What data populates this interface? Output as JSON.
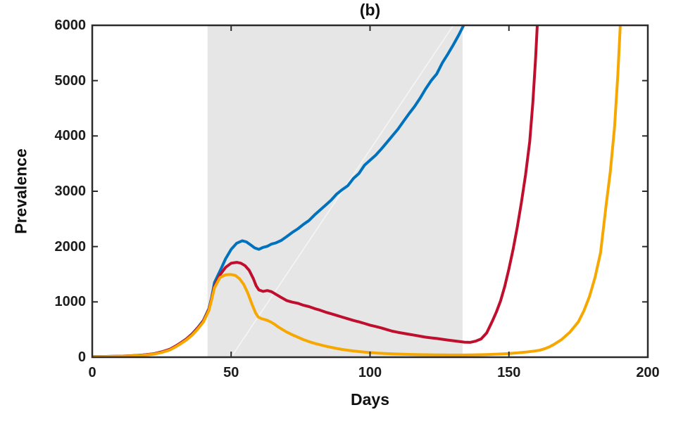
{
  "chart_data": {
    "type": "line",
    "title": "(b)",
    "xlabel": "Days",
    "ylabel": "Prevalence",
    "xlim": [
      0,
      200
    ],
    "ylim": [
      0,
      6000
    ],
    "xticks": [
      0,
      50,
      100,
      150,
      200
    ],
    "yticks": [
      0,
      1000,
      2000,
      3000,
      4000,
      5000,
      6000
    ],
    "grid": false,
    "legend_visible": false,
    "axis_color": "#2b2b2b",
    "tick_label_color": "#1c1c1c",
    "background_color": "#ffffff",
    "shaded_region": {
      "x_start": 41.5,
      "x_end": 133.3,
      "color": "#e6e6e6",
      "diagonal_artifact": {
        "from": [
          50,
          0
        ],
        "to": [
          130,
          6000
        ],
        "color": "rgba(255,255,255,0.6)"
      }
    },
    "series": [
      {
        "name": "blue-curve",
        "color": "#0072BD",
        "points": [
          [
            0,
            10
          ],
          [
            5,
            13
          ],
          [
            10,
            18
          ],
          [
            14,
            25
          ],
          [
            18,
            38
          ],
          [
            22,
            60
          ],
          [
            25,
            95
          ],
          [
            28,
            145
          ],
          [
            30,
            200
          ],
          [
            32,
            265
          ],
          [
            34,
            335
          ],
          [
            36,
            425
          ],
          [
            38,
            535
          ],
          [
            40,
            665
          ],
          [
            42,
            880
          ],
          [
            43,
            1080
          ],
          [
            44,
            1350
          ],
          [
            46,
            1560
          ],
          [
            48,
            1780
          ],
          [
            50,
            1950
          ],
          [
            52,
            2060
          ],
          [
            54,
            2105
          ],
          [
            55.5,
            2085
          ],
          [
            57,
            2030
          ],
          [
            58.5,
            1975
          ],
          [
            60,
            1950
          ],
          [
            61.5,
            1985
          ],
          [
            63,
            2005
          ],
          [
            64.5,
            2045
          ],
          [
            66,
            2065
          ],
          [
            68,
            2110
          ],
          [
            70,
            2180
          ],
          [
            72,
            2255
          ],
          [
            74,
            2320
          ],
          [
            76,
            2400
          ],
          [
            78,
            2470
          ],
          [
            80,
            2570
          ],
          [
            82,
            2660
          ],
          [
            84,
            2750
          ],
          [
            86,
            2840
          ],
          [
            88,
            2950
          ],
          [
            90,
            3030
          ],
          [
            92,
            3100
          ],
          [
            94,
            3230
          ],
          [
            96,
            3320
          ],
          [
            98,
            3470
          ],
          [
            100,
            3560
          ],
          [
            102,
            3650
          ],
          [
            104,
            3760
          ],
          [
            106,
            3880
          ],
          [
            108,
            4000
          ],
          [
            110,
            4120
          ],
          [
            112,
            4260
          ],
          [
            114,
            4400
          ],
          [
            116,
            4530
          ],
          [
            118,
            4680
          ],
          [
            120,
            4850
          ],
          [
            122,
            5000
          ],
          [
            124,
            5120
          ],
          [
            126,
            5320
          ],
          [
            128,
            5480
          ],
          [
            130,
            5650
          ],
          [
            132,
            5830
          ],
          [
            134,
            6030
          ],
          [
            135.5,
            6250
          ]
        ]
      },
      {
        "name": "red-curve",
        "color": "#C00E2E",
        "points": [
          [
            0,
            10
          ],
          [
            5,
            13
          ],
          [
            10,
            18
          ],
          [
            14,
            25
          ],
          [
            18,
            38
          ],
          [
            22,
            60
          ],
          [
            25,
            95
          ],
          [
            28,
            145
          ],
          [
            30,
            200
          ],
          [
            32,
            263
          ],
          [
            34,
            330
          ],
          [
            36,
            420
          ],
          [
            38,
            528
          ],
          [
            40,
            655
          ],
          [
            42,
            865
          ],
          [
            43,
            1060
          ],
          [
            44,
            1280
          ],
          [
            46,
            1490
          ],
          [
            48,
            1625
          ],
          [
            50,
            1700
          ],
          [
            52,
            1715
          ],
          [
            53.5,
            1700
          ],
          [
            55,
            1655
          ],
          [
            56.5,
            1570
          ],
          [
            58,
            1420
          ],
          [
            59,
            1290
          ],
          [
            60,
            1215
          ],
          [
            61.5,
            1190
          ],
          [
            63,
            1205
          ],
          [
            64.5,
            1185
          ],
          [
            66,
            1140
          ],
          [
            68,
            1080
          ],
          [
            70,
            1025
          ],
          [
            72,
            995
          ],
          [
            74,
            975
          ],
          [
            76,
            940
          ],
          [
            78,
            915
          ],
          [
            80,
            880
          ],
          [
            82,
            850
          ],
          [
            84,
            815
          ],
          [
            86,
            785
          ],
          [
            88,
            755
          ],
          [
            90,
            725
          ],
          [
            92,
            695
          ],
          [
            94,
            665
          ],
          [
            96,
            640
          ],
          [
            98,
            610
          ],
          [
            100,
            580
          ],
          [
            102,
            555
          ],
          [
            104,
            530
          ],
          [
            106,
            500
          ],
          [
            108,
            470
          ],
          [
            110,
            450
          ],
          [
            112,
            432
          ],
          [
            114,
            415
          ],
          [
            116,
            398
          ],
          [
            118,
            380
          ],
          [
            120,
            362
          ],
          [
            122,
            350
          ],
          [
            124,
            338
          ],
          [
            126,
            324
          ],
          [
            128,
            310
          ],
          [
            130,
            298
          ],
          [
            132,
            285
          ],
          [
            134,
            272
          ],
          [
            136,
            268
          ],
          [
            138,
            290
          ],
          [
            140,
            330
          ],
          [
            142,
            440
          ],
          [
            144,
            650
          ],
          [
            145.5,
            820
          ],
          [
            147,
            1020
          ],
          [
            148.5,
            1280
          ],
          [
            150,
            1600
          ],
          [
            151.5,
            1950
          ],
          [
            153,
            2350
          ],
          [
            154.5,
            2800
          ],
          [
            156,
            3300
          ],
          [
            157.5,
            3900
          ],
          [
            158.6,
            4600
          ],
          [
            159.6,
            5400
          ],
          [
            160.5,
            6300
          ]
        ]
      },
      {
        "name": "orange-curve",
        "color": "#F6A800",
        "points": [
          [
            0,
            8
          ],
          [
            5,
            11
          ],
          [
            10,
            15
          ],
          [
            14,
            21
          ],
          [
            18,
            33
          ],
          [
            22,
            53
          ],
          [
            25,
            85
          ],
          [
            28,
            132
          ],
          [
            30,
            185
          ],
          [
            32,
            248
          ],
          [
            34,
            315
          ],
          [
            36,
            400
          ],
          [
            38,
            510
          ],
          [
            40,
            635
          ],
          [
            42,
            845
          ],
          [
            43,
            1040
          ],
          [
            44,
            1255
          ],
          [
            46,
            1440
          ],
          [
            48,
            1490
          ],
          [
            50,
            1495
          ],
          [
            51.5,
            1478
          ],
          [
            53,
            1420
          ],
          [
            54.5,
            1320
          ],
          [
            56,
            1160
          ],
          [
            57.5,
            960
          ],
          [
            58.8,
            800
          ],
          [
            59.8,
            725
          ],
          [
            61,
            695
          ],
          [
            62.5,
            675
          ],
          [
            64,
            645
          ],
          [
            65.5,
            600
          ],
          [
            67,
            545
          ],
          [
            68.5,
            500
          ],
          [
            70,
            455
          ],
          [
            72,
            405
          ],
          [
            74,
            362
          ],
          [
            76,
            318
          ],
          [
            78,
            282
          ],
          [
            80,
            250
          ],
          [
            82,
            225
          ],
          [
            84,
            200
          ],
          [
            86,
            178
          ],
          [
            88,
            158
          ],
          [
            90,
            140
          ],
          [
            92,
            126
          ],
          [
            94,
            113
          ],
          [
            96,
            102
          ],
          [
            98,
            92
          ],
          [
            100,
            84
          ],
          [
            103,
            73
          ],
          [
            106,
            65
          ],
          [
            109,
            58
          ],
          [
            112,
            53
          ],
          [
            115,
            49
          ],
          [
            118,
            46
          ],
          [
            121,
            44
          ],
          [
            124,
            42
          ],
          [
            127,
            41
          ],
          [
            130,
            40
          ],
          [
            133,
            40
          ],
          [
            136,
            41
          ],
          [
            139,
            44
          ],
          [
            142,
            48
          ],
          [
            145,
            54
          ],
          [
            148,
            60
          ],
          [
            150,
            66
          ],
          [
            153,
            77
          ],
          [
            156,
            92
          ],
          [
            159,
            110
          ],
          [
            161,
            125
          ],
          [
            163,
            155
          ],
          [
            164.5,
            185
          ],
          [
            166,
            225
          ],
          [
            169,
            320
          ],
          [
            172,
            455
          ],
          [
            175,
            640
          ],
          [
            177,
            840
          ],
          [
            179,
            1100
          ],
          [
            181,
            1440
          ],
          [
            183,
            1890
          ],
          [
            185,
            2750
          ],
          [
            186.5,
            3350
          ],
          [
            188,
            4150
          ],
          [
            189.2,
            5100
          ],
          [
            190.2,
            6100
          ],
          [
            191,
            6400
          ]
        ]
      }
    ]
  }
}
